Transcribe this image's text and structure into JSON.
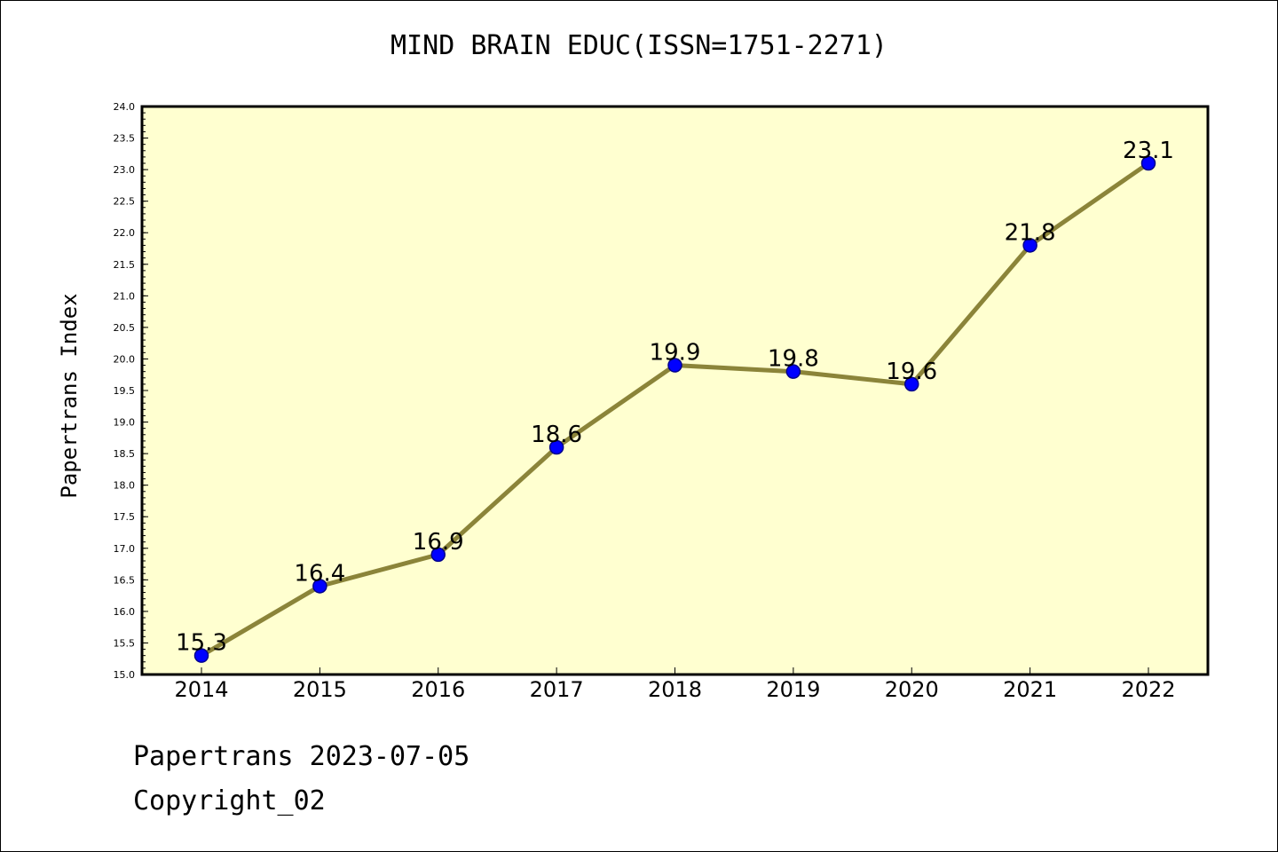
{
  "chart_data": {
    "type": "line",
    "title": "MIND BRAIN EDUC(ISSN=1751-2271)",
    "xlabel": "",
    "ylabel": "Papertrans Index",
    "categories": [
      "2014",
      "2015",
      "2016",
      "2017",
      "2018",
      "2019",
      "2020",
      "2021",
      "2022"
    ],
    "series": [
      {
        "values": [
          15.3,
          16.4,
          16.9,
          18.6,
          19.9,
          19.8,
          19.6,
          21.8,
          23.1
        ]
      }
    ],
    "data_labels": [
      "15.3",
      "16.4",
      "16.9",
      "18.6",
      "19.9",
      "19.8",
      "19.6",
      "21.8",
      "23.1"
    ],
    "ylim": [
      15.0,
      24.0
    ],
    "ystep": 0.5,
    "yticks": [
      "15.0",
      "15.5",
      "16.0",
      "16.5",
      "17.0",
      "17.5",
      "18.0",
      "18.5",
      "19.0",
      "19.5",
      "20.0",
      "20.5",
      "21.0",
      "21.5",
      "22.0",
      "22.5",
      "23.0",
      "23.5",
      "24.0"
    ],
    "grid": false,
    "legend": "none",
    "colors": {
      "plot_background": "#ffffd0",
      "line": "#8b8439",
      "marker": "#0000ff",
      "marker_edge": "#00008b"
    }
  },
  "footer": {
    "date_line": "Papertrans 2023-07-05",
    "copyright": "Copyright_02"
  }
}
